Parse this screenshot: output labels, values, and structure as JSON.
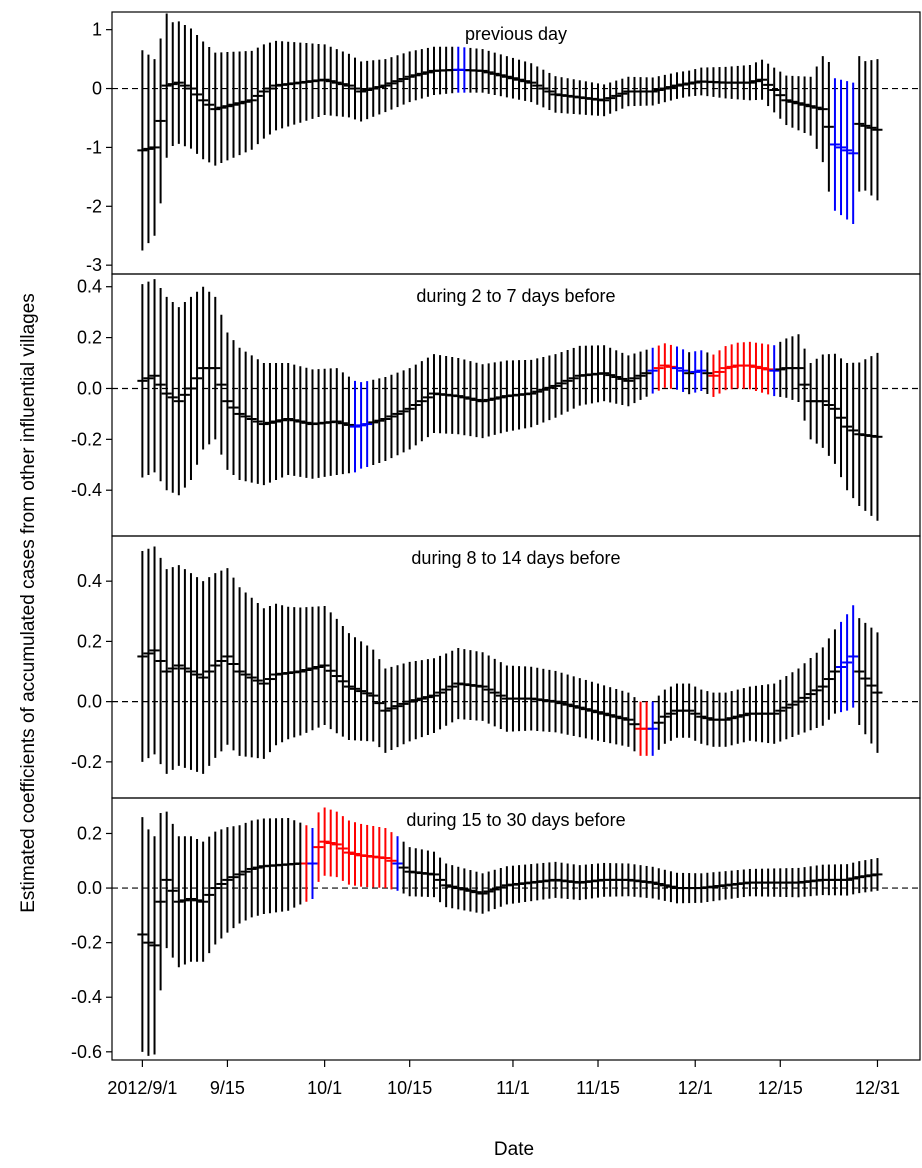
{
  "chart_data": {
    "type": "errorbar",
    "xlabel": "Date",
    "ylabel": "Estimated coefficients of accumulated cases from other influential villages",
    "x_ticks": [
      {
        "label": "2012/9/1",
        "day": 0
      },
      {
        "label": "9/15",
        "day": 14
      },
      {
        "label": "10/1",
        "day": 30
      },
      {
        "label": "10/15",
        "day": 44
      },
      {
        "label": "11/1",
        "day": 61
      },
      {
        "label": "11/15",
        "day": 75
      },
      {
        "label": "12/1",
        "day": 91
      },
      {
        "label": "12/15",
        "day": 105
      },
      {
        "label": "12/31",
        "day": 121
      }
    ],
    "xlim": [
      -5,
      128
    ],
    "reference_line": 0,
    "colors": {
      "default": "#000000",
      "positive_significant": "#ff0000",
      "negative_significant": "#0000ff",
      "frame": "#000000"
    },
    "panels": [
      {
        "title": "previous day",
        "ylim": [
          -3.15,
          1.3
        ],
        "yticks": [
          1,
          0,
          -1,
          -2,
          -3
        ],
        "ytick_labels": [
          "1",
          "0",
          "-1",
          "-2",
          "-3"
        ],
        "anchors": [
          [
            0,
            -1.05
          ],
          [
            2,
            -1.0
          ],
          [
            3,
            -0.55
          ],
          [
            4,
            0.05
          ],
          [
            6,
            0.1
          ],
          [
            8,
            0.0
          ],
          [
            10,
            -0.2
          ],
          [
            12,
            -0.35
          ],
          [
            14,
            -0.3
          ],
          [
            16,
            -0.25
          ],
          [
            18,
            -0.2
          ],
          [
            20,
            -0.05
          ],
          [
            22,
            0.05
          ],
          [
            26,
            0.1
          ],
          [
            30,
            0.15
          ],
          [
            34,
            0.05
          ],
          [
            36,
            -0.05
          ],
          [
            40,
            0.05
          ],
          [
            44,
            0.2
          ],
          [
            48,
            0.3
          ],
          [
            52,
            0.32
          ],
          [
            56,
            0.3
          ],
          [
            60,
            0.2
          ],
          [
            64,
            0.1
          ],
          [
            68,
            -0.1
          ],
          [
            72,
            -0.15
          ],
          [
            76,
            -0.2
          ],
          [
            80,
            -0.05
          ],
          [
            84,
            -0.05
          ],
          [
            88,
            0.05
          ],
          [
            92,
            0.12
          ],
          [
            96,
            0.1
          ],
          [
            100,
            0.1
          ],
          [
            102,
            0.15
          ],
          [
            106,
            -0.2
          ],
          [
            110,
            -0.3
          ],
          [
            112,
            -0.35
          ],
          [
            114,
            -0.95
          ],
          [
            116,
            -1.05
          ],
          [
            117,
            -1.1
          ],
          [
            118,
            -0.6
          ],
          [
            121,
            -0.7
          ]
        ],
        "halfwidth": [
          [
            0,
            1.7
          ],
          [
            3,
            1.4
          ],
          [
            5,
            1.05
          ],
          [
            10,
            1.0
          ],
          [
            20,
            0.8
          ],
          [
            30,
            0.6
          ],
          [
            40,
            0.45
          ],
          [
            50,
            0.4
          ],
          [
            60,
            0.35
          ],
          [
            80,
            0.25
          ],
          [
            90,
            0.22
          ],
          [
            100,
            0.3
          ],
          [
            110,
            0.5
          ],
          [
            113,
            1.1
          ],
          [
            117,
            1.2
          ],
          [
            119,
            1.1
          ],
          [
            121,
            1.2
          ]
        ],
        "sig": [
          {
            "from": 52,
            "to": 53,
            "color": "negative_significant"
          },
          {
            "from": 114,
            "to": 117,
            "color": "negative_significant"
          }
        ]
      },
      {
        "title": "during 2 to 7 days before",
        "ylim": [
          -0.58,
          0.45
        ],
        "yticks": [
          0.4,
          0.2,
          0.0,
          -0.2,
          -0.4
        ],
        "ytick_labels": [
          "0.4",
          "0.2",
          "0.0",
          "-0.2",
          "-0.4"
        ],
        "anchors": [
          [
            0,
            0.03
          ],
          [
            2,
            0.05
          ],
          [
            4,
            -0.02
          ],
          [
            6,
            -0.05
          ],
          [
            8,
            0.0
          ],
          [
            10,
            0.08
          ],
          [
            12,
            0.08
          ],
          [
            14,
            -0.05
          ],
          [
            16,
            -0.1
          ],
          [
            18,
            -0.12
          ],
          [
            20,
            -0.14
          ],
          [
            24,
            -0.12
          ],
          [
            28,
            -0.14
          ],
          [
            32,
            -0.13
          ],
          [
            35,
            -0.15
          ],
          [
            37,
            -0.14
          ],
          [
            40,
            -0.12
          ],
          [
            44,
            -0.08
          ],
          [
            48,
            -0.02
          ],
          [
            52,
            -0.03
          ],
          [
            56,
            -0.05
          ],
          [
            60,
            -0.03
          ],
          [
            64,
            -0.02
          ],
          [
            68,
            0.01
          ],
          [
            72,
            0.05
          ],
          [
            76,
            0.06
          ],
          [
            80,
            0.03
          ],
          [
            84,
            0.07
          ],
          [
            86,
            0.09
          ],
          [
            88,
            0.08
          ],
          [
            90,
            0.06
          ],
          [
            92,
            0.07
          ],
          [
            94,
            0.05
          ],
          [
            96,
            0.08
          ],
          [
            98,
            0.09
          ],
          [
            100,
            0.09
          ],
          [
            102,
            0.08
          ],
          [
            104,
            0.07
          ],
          [
            106,
            0.08
          ],
          [
            108,
            0.08
          ],
          [
            110,
            -0.05
          ],
          [
            112,
            -0.05
          ],
          [
            114,
            -0.08
          ],
          [
            116,
            -0.15
          ],
          [
            118,
            -0.18
          ],
          [
            121,
            -0.19
          ]
        ],
        "halfwidth": [
          [
            0,
            0.38
          ],
          [
            4,
            0.38
          ],
          [
            8,
            0.36
          ],
          [
            12,
            0.28
          ],
          [
            16,
            0.26
          ],
          [
            24,
            0.22
          ],
          [
            32,
            0.21
          ],
          [
            36,
            0.17
          ],
          [
            44,
            0.16
          ],
          [
            60,
            0.14
          ],
          [
            76,
            0.11
          ],
          [
            84,
            0.09
          ],
          [
            92,
            0.08
          ],
          [
            104,
            0.1
          ],
          [
            110,
            0.15
          ],
          [
            116,
            0.25
          ],
          [
            121,
            0.33
          ]
        ],
        "sig": [
          {
            "from": 35,
            "to": 37,
            "color": "negative_significant"
          },
          {
            "from": 84,
            "to": 84,
            "color": "negative_significant"
          },
          {
            "from": 85,
            "to": 87,
            "color": "positive_significant"
          },
          {
            "from": 88,
            "to": 89,
            "color": "negative_significant"
          },
          {
            "from": 91,
            "to": 92,
            "color": "negative_significant"
          },
          {
            "from": 94,
            "to": 103,
            "color": "positive_significant"
          },
          {
            "from": 104,
            "to": 104,
            "color": "negative_significant"
          }
        ]
      },
      {
        "title": "during 8 to 14 days before",
        "ylim": [
          -0.32,
          0.55
        ],
        "yticks": [
          0.4,
          0.2,
          0.0,
          -0.2
        ],
        "ytick_labels": [
          "0.4",
          "0.2",
          "0.0",
          "-0.2"
        ],
        "anchors": [
          [
            0,
            0.15
          ],
          [
            2,
            0.17
          ],
          [
            4,
            0.1
          ],
          [
            6,
            0.12
          ],
          [
            8,
            0.1
          ],
          [
            10,
            0.08
          ],
          [
            12,
            0.12
          ],
          [
            14,
            0.15
          ],
          [
            16,
            0.1
          ],
          [
            18,
            0.08
          ],
          [
            20,
            0.06
          ],
          [
            22,
            0.09
          ],
          [
            26,
            0.1
          ],
          [
            30,
            0.12
          ],
          [
            34,
            0.05
          ],
          [
            38,
            0.02
          ],
          [
            40,
            -0.03
          ],
          [
            44,
            0.0
          ],
          [
            48,
            0.02
          ],
          [
            52,
            0.06
          ],
          [
            56,
            0.05
          ],
          [
            60,
            0.01
          ],
          [
            64,
            0.01
          ],
          [
            68,
            0.0
          ],
          [
            72,
            -0.02
          ],
          [
            76,
            -0.04
          ],
          [
            80,
            -0.06
          ],
          [
            82,
            -0.09
          ],
          [
            84,
            -0.09
          ],
          [
            86,
            -0.05
          ],
          [
            88,
            -0.03
          ],
          [
            90,
            -0.03
          ],
          [
            92,
            -0.05
          ],
          [
            94,
            -0.06
          ],
          [
            96,
            -0.06
          ],
          [
            98,
            -0.05
          ],
          [
            100,
            -0.04
          ],
          [
            104,
            -0.04
          ],
          [
            108,
            0.0
          ],
          [
            112,
            0.05
          ],
          [
            114,
            0.1
          ],
          [
            116,
            0.13
          ],
          [
            117,
            0.15
          ],
          [
            118,
            0.1
          ],
          [
            121,
            0.03
          ]
        ],
        "halfwidth": [
          [
            0,
            0.35
          ],
          [
            4,
            0.34
          ],
          [
            10,
            0.32
          ],
          [
            16,
            0.28
          ],
          [
            24,
            0.22
          ],
          [
            32,
            0.19
          ],
          [
            40,
            0.14
          ],
          [
            50,
            0.12
          ],
          [
            60,
            0.11
          ],
          [
            70,
            0.1
          ],
          [
            80,
            0.09
          ],
          [
            84,
            0.09
          ],
          [
            90,
            0.09
          ],
          [
            100,
            0.09
          ],
          [
            108,
            0.11
          ],
          [
            114,
            0.14
          ],
          [
            117,
            0.17
          ],
          [
            121,
            0.2
          ]
        ],
        "sig": [
          {
            "from": 82,
            "to": 83,
            "color": "positive_significant"
          },
          {
            "from": 84,
            "to": 84,
            "color": "negative_significant"
          },
          {
            "from": 115,
            "to": 117,
            "color": "negative_significant"
          }
        ]
      },
      {
        "title": "during 15 to 30 days before",
        "ylim": [
          -0.63,
          0.33
        ],
        "yticks": [
          0.2,
          0.0,
          -0.2,
          -0.4,
          -0.6
        ],
        "ytick_labels": [
          "0.2",
          "0.0",
          "-0.2",
          "-0.4",
          "-0.6"
        ],
        "anchors": [
          [
            0,
            -0.17
          ],
          [
            1,
            -0.2
          ],
          [
            2,
            -0.21
          ],
          [
            3,
            -0.05
          ],
          [
            4,
            0.03
          ],
          [
            6,
            -0.05
          ],
          [
            8,
            -0.04
          ],
          [
            10,
            -0.05
          ],
          [
            12,
            0.0
          ],
          [
            14,
            0.03
          ],
          [
            16,
            0.05
          ],
          [
            18,
            0.07
          ],
          [
            20,
            0.08
          ],
          [
            26,
            0.09
          ],
          [
            28,
            0.09
          ],
          [
            29,
            0.15
          ],
          [
            30,
            0.17
          ],
          [
            32,
            0.16
          ],
          [
            34,
            0.13
          ],
          [
            36,
            0.12
          ],
          [
            40,
            0.11
          ],
          [
            42,
            0.09
          ],
          [
            44,
            0.06
          ],
          [
            48,
            0.05
          ],
          [
            50,
            0.01
          ],
          [
            52,
            0.0
          ],
          [
            56,
            -0.02
          ],
          [
            60,
            0.01
          ],
          [
            64,
            0.02
          ],
          [
            68,
            0.03
          ],
          [
            72,
            0.02
          ],
          [
            76,
            0.03
          ],
          [
            80,
            0.03
          ],
          [
            84,
            0.02
          ],
          [
            88,
            0.0
          ],
          [
            92,
            0.0
          ],
          [
            96,
            0.01
          ],
          [
            100,
            0.02
          ],
          [
            104,
            0.02
          ],
          [
            108,
            0.02
          ],
          [
            112,
            0.03
          ],
          [
            116,
            0.03
          ],
          [
            118,
            0.04
          ],
          [
            121,
            0.05
          ]
        ],
        "halfwidth": [
          [
            0,
            0.43
          ],
          [
            2,
            0.4
          ],
          [
            4,
            0.25
          ],
          [
            10,
            0.22
          ],
          [
            16,
            0.18
          ],
          [
            24,
            0.17
          ],
          [
            28,
            0.13
          ],
          [
            32,
            0.12
          ],
          [
            40,
            0.11
          ],
          [
            44,
            0.09
          ],
          [
            50,
            0.08
          ],
          [
            60,
            0.07
          ],
          [
            80,
            0.06
          ],
          [
            100,
            0.05
          ],
          [
            121,
            0.06
          ]
        ],
        "sig": [
          {
            "from": 27,
            "to": 27,
            "color": "positive_significant"
          },
          {
            "from": 28,
            "to": 28,
            "color": "negative_significant"
          },
          {
            "from": 29,
            "to": 41,
            "color": "positive_significant"
          },
          {
            "from": 42,
            "to": 42,
            "color": "negative_significant"
          }
        ]
      }
    ]
  }
}
